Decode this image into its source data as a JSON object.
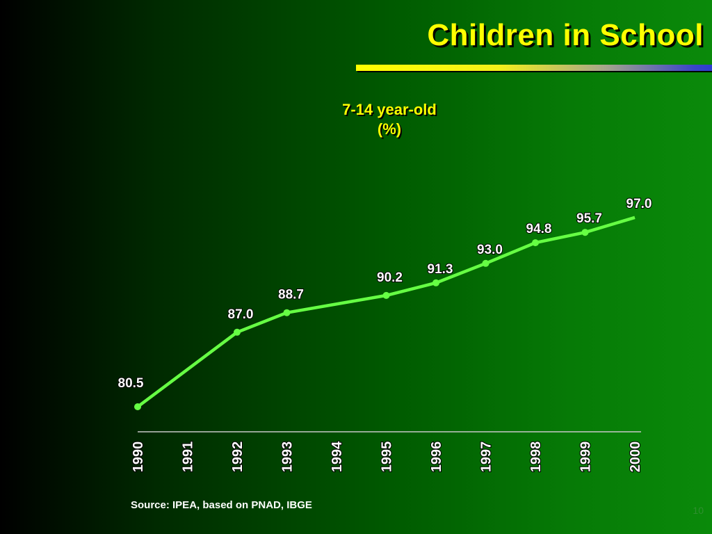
{
  "slide": {
    "title": "Children in School",
    "source": "Source: IPEA, based on PNAD, IBGE",
    "page_number": "10"
  },
  "colors": {
    "title": "#ffff00",
    "line": "#66ff44",
    "labels": "#ffffff",
    "axis": "#c8c8c8"
  },
  "chart_data": {
    "type": "line",
    "title": "7-14 year-old",
    "title_line2": "(%)",
    "x": [
      "1990",
      "1991",
      "1992",
      "1993",
      "1994",
      "1995",
      "1996",
      "1997",
      "1998",
      "1999",
      "2000"
    ],
    "series": [
      {
        "values": [
          80.5,
          null,
          87.0,
          88.7,
          null,
          90.2,
          91.3,
          93.0,
          94.8,
          95.7,
          97.0
        ]
      }
    ],
    "data_labels": [
      "80.5",
      null,
      "87.0",
      "88.7",
      null,
      "90.2",
      "91.3",
      "93.0",
      "94.8",
      "95.7",
      "97.0"
    ],
    "ylim": [
      74,
      99
    ],
    "grid": false
  }
}
